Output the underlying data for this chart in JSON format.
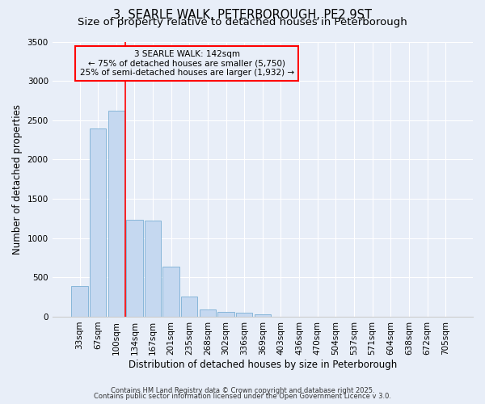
{
  "title": "3, SEARLE WALK, PETERBOROUGH, PE2 9ST",
  "subtitle": "Size of property relative to detached houses in Peterborough",
  "xlabel": "Distribution of detached houses by size in Peterborough",
  "ylabel": "Number of detached properties",
  "categories": [
    "33sqm",
    "67sqm",
    "100sqm",
    "134sqm",
    "167sqm",
    "201sqm",
    "235sqm",
    "268sqm",
    "302sqm",
    "336sqm",
    "369sqm",
    "403sqm",
    "436sqm",
    "470sqm",
    "504sqm",
    "537sqm",
    "571sqm",
    "604sqm",
    "638sqm",
    "672sqm",
    "705sqm"
  ],
  "values": [
    390,
    2400,
    2620,
    1230,
    1220,
    640,
    260,
    95,
    60,
    55,
    35,
    0,
    0,
    0,
    0,
    0,
    0,
    0,
    0,
    0,
    0
  ],
  "bar_color": "#c5d8f0",
  "bar_edgecolor": "#7aafd4",
  "bg_color": "#e8eef8",
  "grid_color": "#ffffff",
  "vline_color": "red",
  "vline_pos": 2.5,
  "ylim": [
    0,
    3500
  ],
  "yticks": [
    0,
    500,
    1000,
    1500,
    2000,
    2500,
    3000,
    3500
  ],
  "annotation_title": "3 SEARLE WALK: 142sqm",
  "annotation_line1": "← 75% of detached houses are smaller (5,750)",
  "annotation_line2": "25% of semi-detached houses are larger (1,932) →",
  "footer1": "Contains HM Land Registry data © Crown copyright and database right 2025.",
  "footer2": "Contains public sector information licensed under the Open Government Licence v 3.0.",
  "title_fontsize": 10.5,
  "subtitle_fontsize": 9.5,
  "tick_fontsize": 7.5,
  "ylabel_fontsize": 8.5,
  "xlabel_fontsize": 8.5,
  "annotation_fontsize": 7.5,
  "footer_fontsize": 6.0
}
